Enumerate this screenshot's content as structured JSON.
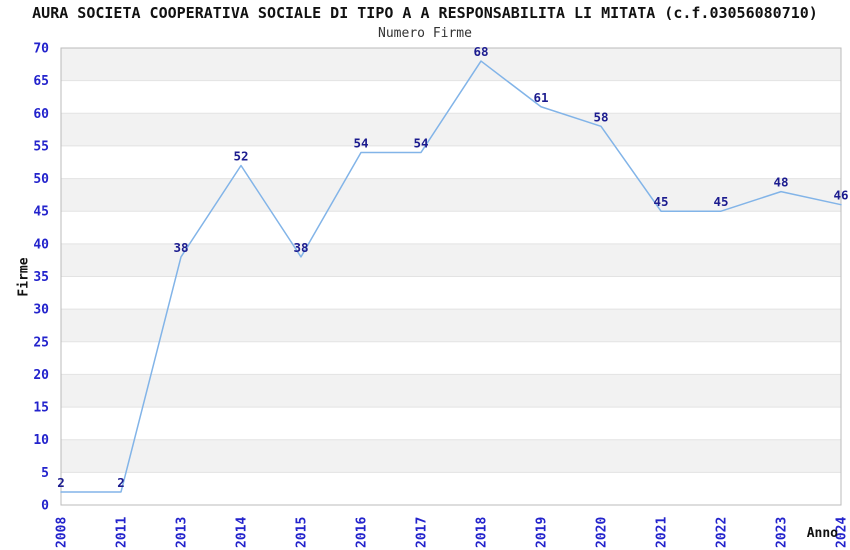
{
  "page": {
    "title": "AURA SOCIETA COOPERATIVA SOCIALE DI TIPO A A RESPONSABILITA LI MITATA (c.f.03056080710)",
    "subtitle": "Numero Firme"
  },
  "chart_data": {
    "type": "line",
    "title": "AURA SOCIETA COOPERATIVA SOCIALE DI TIPO A A RESPONSABILITA LI MITATA (c.f.03056080710)",
    "subtitle": "Numero Firme",
    "xlabel": "Anno",
    "ylabel": "Firme",
    "categories": [
      "2008",
      "2011",
      "2013",
      "2014",
      "2015",
      "2016",
      "2017",
      "2018",
      "2019",
      "2020",
      "2021",
      "2022",
      "2023",
      "2024"
    ],
    "values": [
      2,
      2,
      38,
      52,
      38,
      54,
      54,
      68,
      61,
      58,
      45,
      45,
      48,
      46
    ],
    "ylim": [
      0,
      70
    ],
    "yticks": [
      0,
      5,
      10,
      15,
      20,
      25,
      30,
      35,
      40,
      45,
      50,
      55,
      60,
      65,
      70
    ],
    "grid": true,
    "band_fill": true,
    "legend": "none",
    "colors": {
      "line": "#82B4E8",
      "data_label": "#1C1C8F",
      "tick_label": "#2323CC",
      "band": "#F2F2F2",
      "grid": "#E3E3E3",
      "border": "#BBBBBB",
      "title": "#111111",
      "subtitle": "#333333"
    }
  }
}
